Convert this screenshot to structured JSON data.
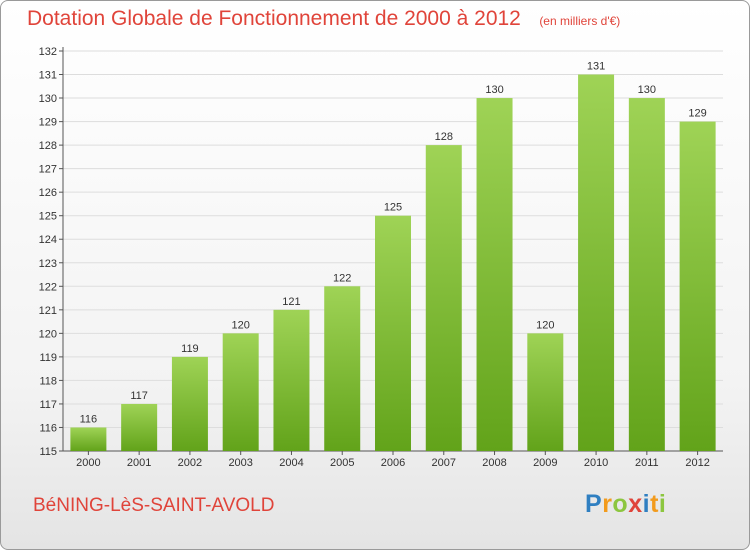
{
  "header": {
    "title": "Dotation Globale de Fonctionnement de 2000 à 2012",
    "subtitle": "(en milliers d'€)"
  },
  "footer": {
    "commune": "BéNING-LèS-SAINT-AVOLD",
    "brand": "Proxiti",
    "brand_letters": [
      {
        "char": "P",
        "color": "#2f7fc1"
      },
      {
        "char": "r",
        "color": "#f29b1d"
      },
      {
        "char": "o",
        "color": "#8cc63f"
      },
      {
        "char": "x",
        "color": "#e0443a"
      },
      {
        "char": "i",
        "color": "#2f7fc1"
      },
      {
        "char": "t",
        "color": "#f29b1d"
      },
      {
        "char": "i",
        "color": "#8cc63f"
      }
    ]
  },
  "colors": {
    "accent": "#e0443a",
    "bar_light": "#9fd356",
    "bar_dark": "#62a31a"
  },
  "chart_data": {
    "type": "bar",
    "title": "Dotation Globale de Fonctionnement de 2000 à 2012",
    "subtitle": "(en milliers d'€)",
    "categories": [
      "2000",
      "2001",
      "2002",
      "2003",
      "2004",
      "2005",
      "2006",
      "2007",
      "2008",
      "2009",
      "2010",
      "2011",
      "2012"
    ],
    "values": [
      116,
      117,
      119,
      120,
      121,
      122,
      125,
      128,
      130,
      120,
      131,
      130,
      129
    ],
    "ylim": [
      115,
      132
    ],
    "yticks": [
      "115",
      "116",
      "117",
      "118",
      "119",
      "120",
      "121",
      "122",
      "123",
      "124",
      "125",
      "126",
      "127",
      "128",
      "129",
      "130",
      "131",
      "132"
    ],
    "xlabel": "",
    "ylabel": "",
    "grid": true
  }
}
